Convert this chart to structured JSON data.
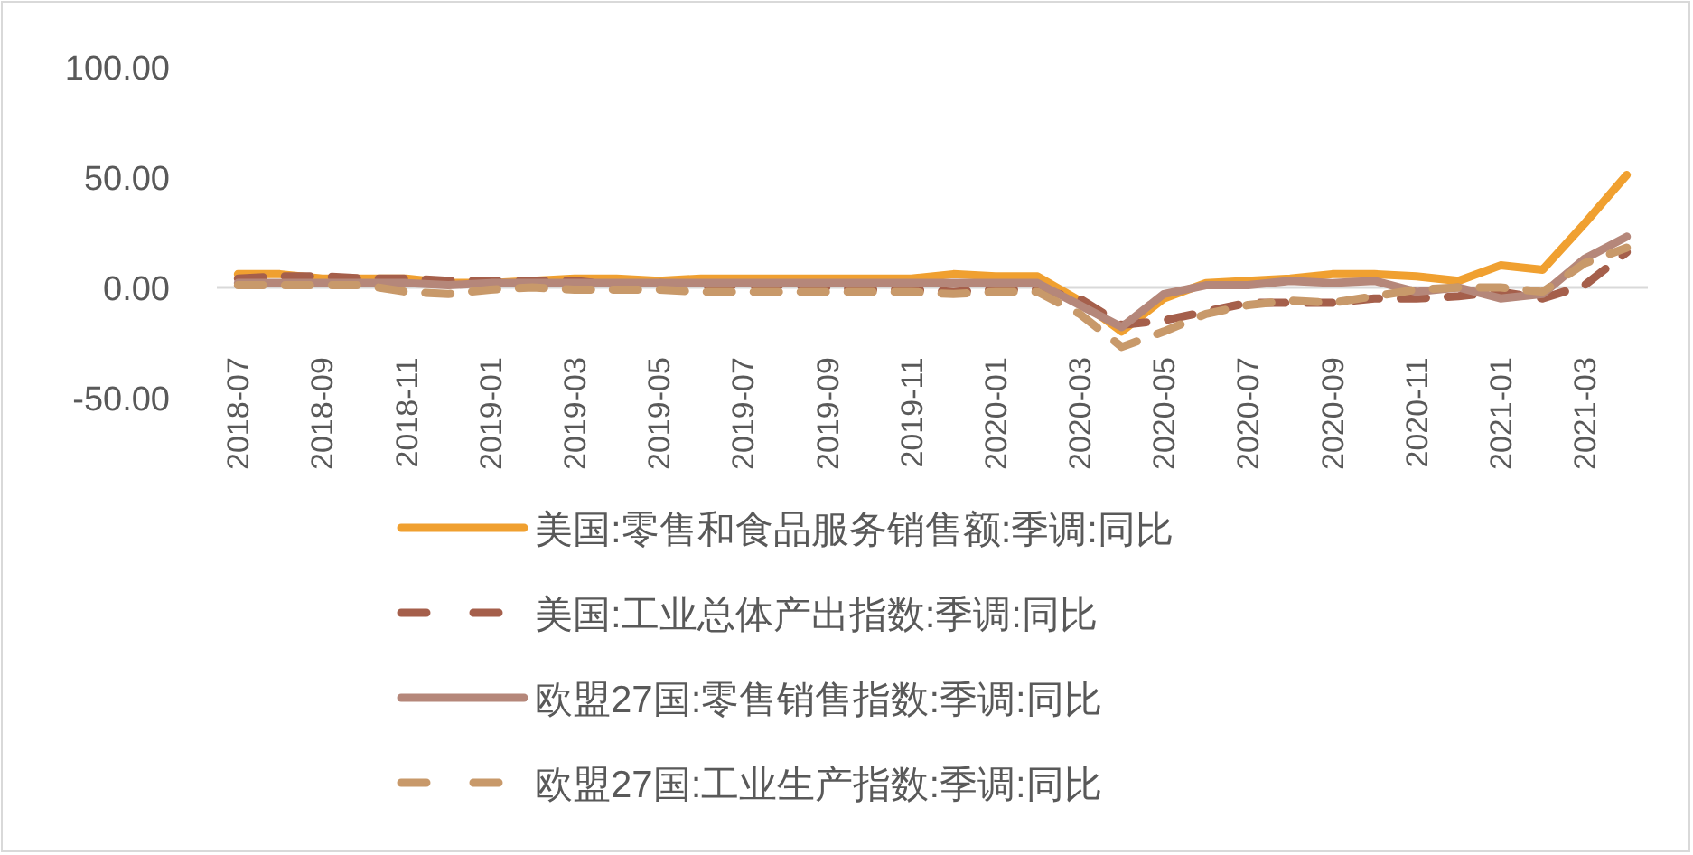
{
  "chart_data": {
    "type": "line",
    "categories": [
      "2018-07",
      null,
      "2018-09",
      null,
      "2018-11",
      null,
      "2019-01",
      null,
      "2019-03",
      null,
      "2019-05",
      null,
      "2019-07",
      null,
      "2019-09",
      null,
      "2019-11",
      null,
      "2020-01",
      null,
      "2020-03",
      null,
      "2020-05",
      null,
      "2020-07",
      null,
      "2020-09",
      null,
      "2020-11",
      null,
      "2021-01",
      null,
      "2021-03",
      null
    ],
    "ylim": [
      -50,
      100
    ],
    "yticks": [
      {
        "value": -50,
        "label": "-50.00"
      },
      {
        "value": 0,
        "label": "0.00"
      },
      {
        "value": 50,
        "label": "50.00"
      },
      {
        "value": 100,
        "label": "100.00"
      }
    ],
    "grid": false,
    "legend": "bottom",
    "series": [
      {
        "name": "美国:零售和食品服务销售额:季调:同比",
        "color": "#f0a030",
        "line_style": "solid",
        "values": [
          6,
          6,
          4,
          4,
          4,
          2,
          2,
          3,
          4,
          4,
          3,
          4,
          4,
          4,
          4,
          4,
          4,
          6,
          5,
          5,
          -6,
          -20,
          -5,
          2,
          3,
          4,
          6,
          6,
          5,
          3,
          10,
          8,
          29,
          51
        ]
      },
      {
        "name": "美国:工业总体产出指数:季调:同比",
        "color": "#a55f4b",
        "line_style": "dashed",
        "values": [
          4,
          5,
          5,
          4,
          4,
          3,
          3,
          3,
          3,
          1,
          2,
          1,
          1,
          1,
          0,
          -1,
          -1,
          -2,
          -1,
          -1,
          -5,
          -17,
          -15,
          -11,
          -7,
          -7,
          -7,
          -5,
          -5,
          -4,
          -2,
          -5,
          1,
          16
        ]
      },
      {
        "name": "欧盟27国:零售销售指数:季调:同比",
        "color": "#b5877a",
        "line_style": "solid",
        "values": [
          2,
          2,
          2,
          2,
          2,
          1,
          2,
          2,
          2,
          2,
          2,
          2,
          2,
          2,
          2,
          2,
          2,
          2,
          2,
          2,
          -8,
          -18,
          -3,
          1,
          1,
          3,
          2,
          3,
          -2,
          0,
          -5,
          -3,
          13,
          23
        ]
      },
      {
        "name": "欧盟27国:工业生产指数:季调:同比",
        "color": "#c8996a",
        "line_style": "dashed",
        "values": [
          1,
          1,
          1,
          1,
          -2,
          -3,
          -1,
          0,
          -1,
          -1,
          -1,
          -2,
          -2,
          -2,
          -2,
          -2,
          -2,
          -3,
          -2,
          -2,
          -12,
          -27,
          -20,
          -12,
          -8,
          -6,
          -7,
          -4,
          -1,
          0,
          0,
          -2,
          11,
          18
        ]
      }
    ]
  }
}
